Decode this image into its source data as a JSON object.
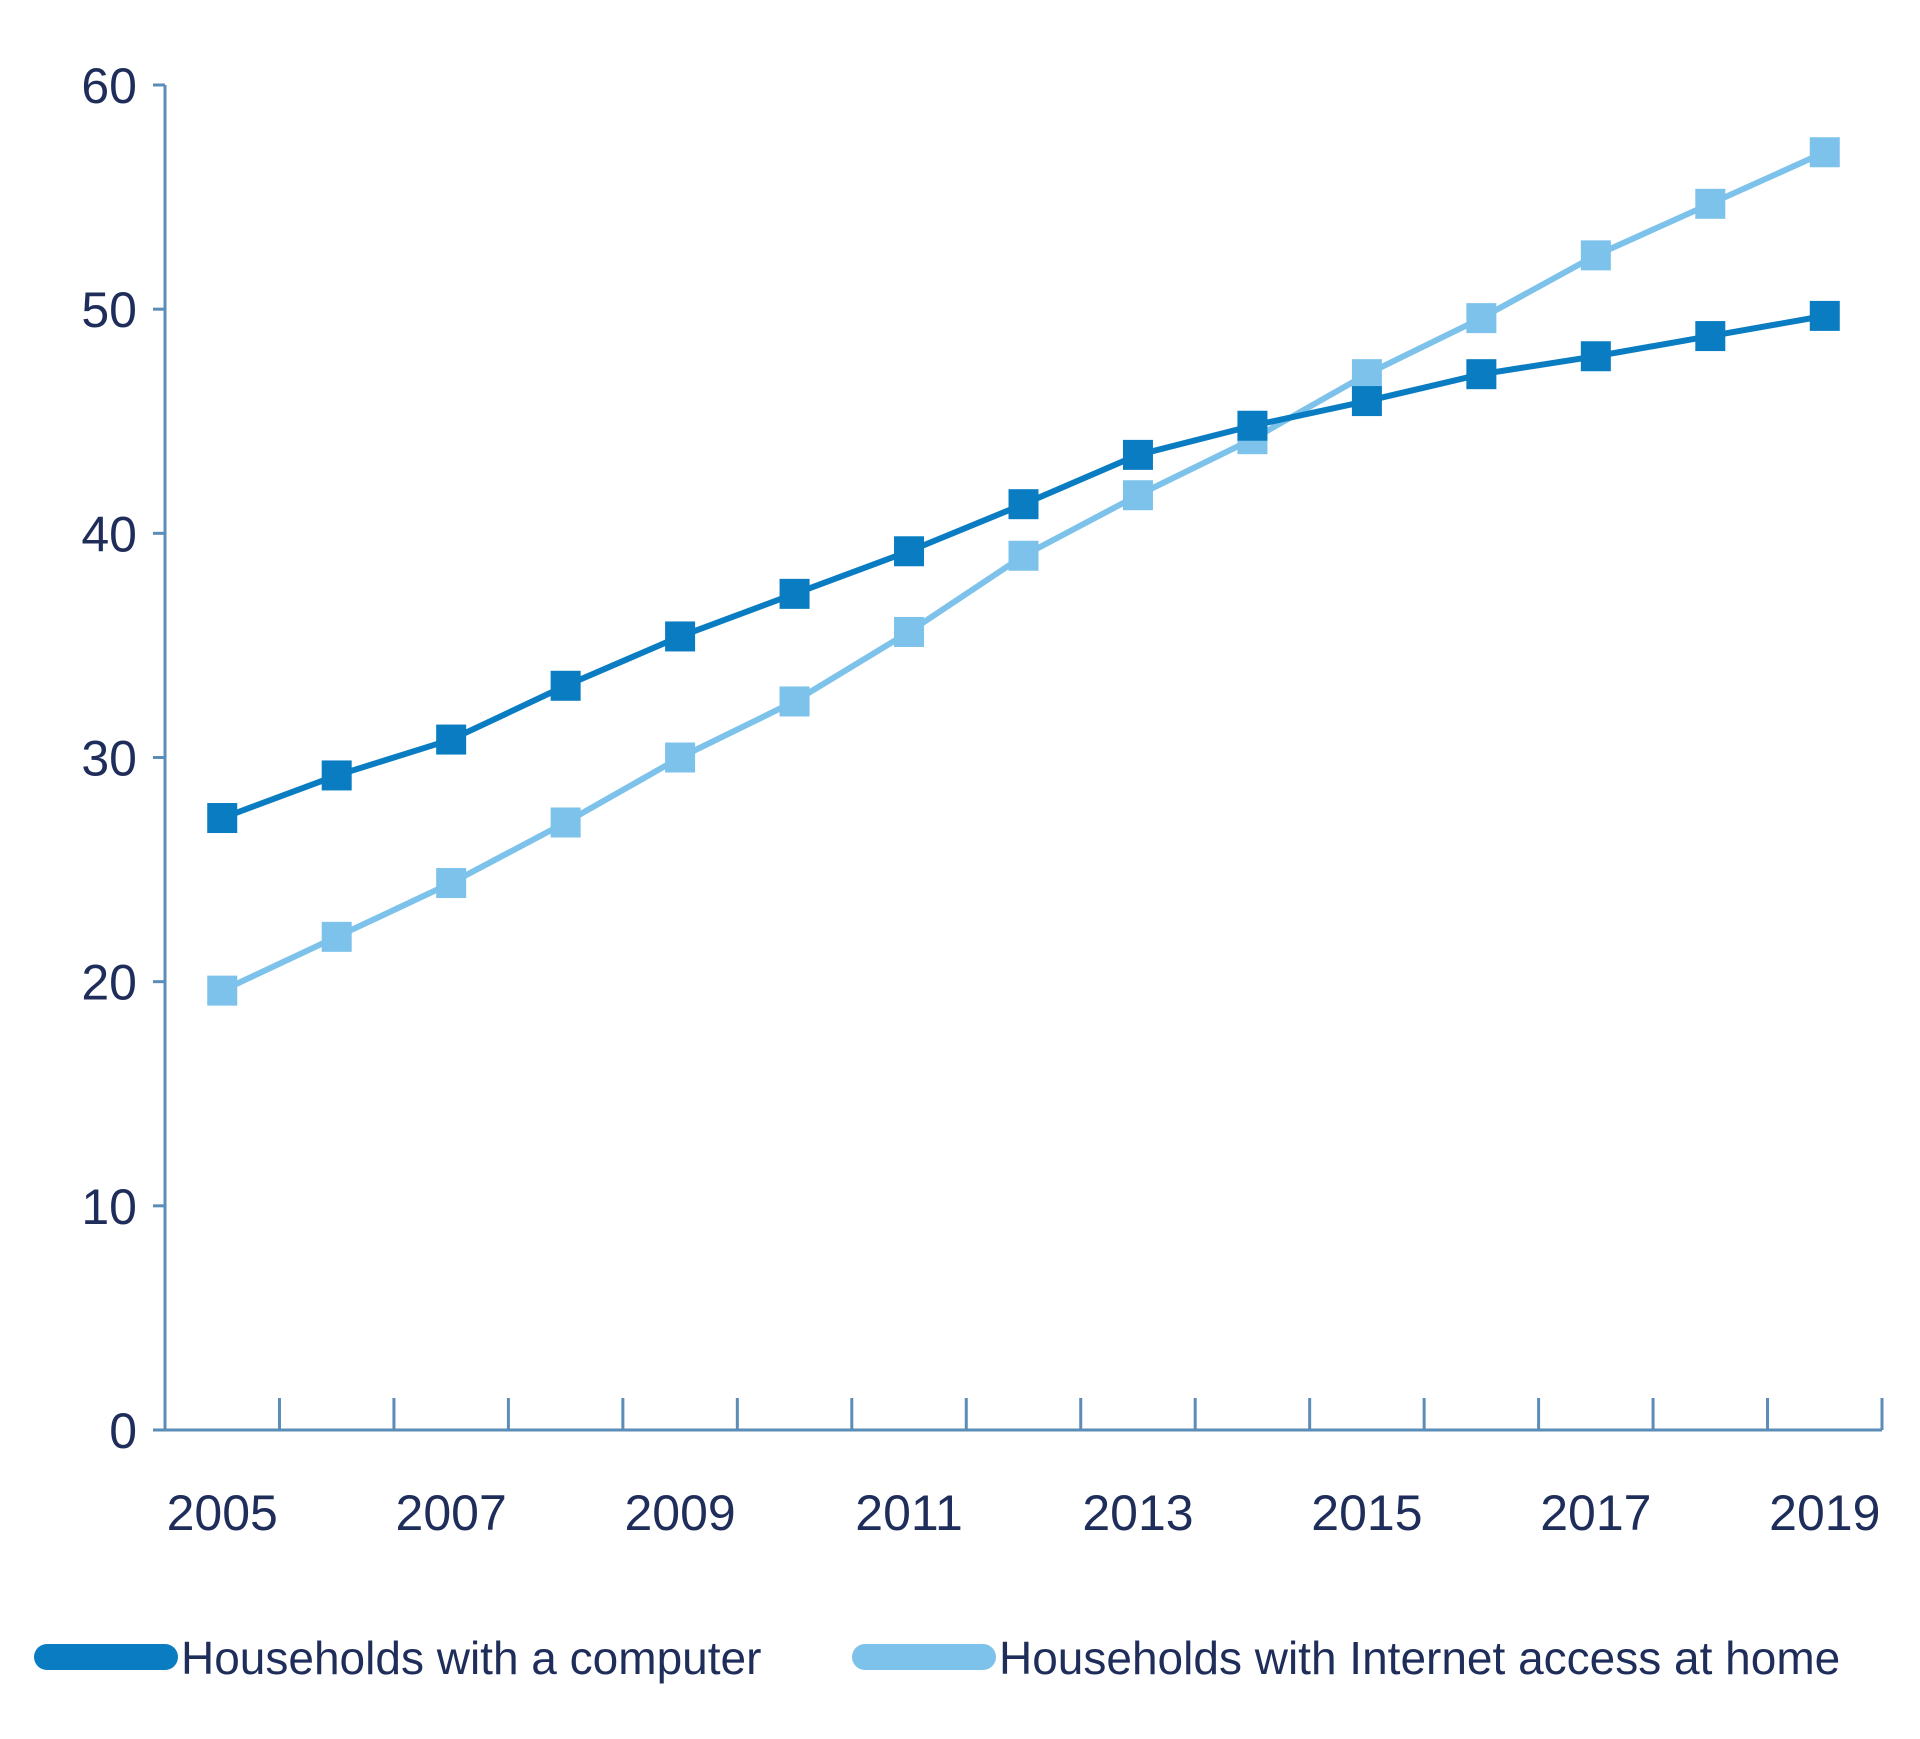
{
  "chart_data": {
    "type": "line",
    "x": [
      2005,
      2006,
      2007,
      2008,
      2009,
      2010,
      2011,
      2012,
      2013,
      2014,
      2015,
      2016,
      2017,
      2018,
      2019
    ],
    "x_tick_labels": [
      "2005",
      "2007",
      "2009",
      "2011",
      "2013",
      "2015",
      "2017",
      "2019"
    ],
    "y_tick_labels": [
      "0",
      "10",
      "20",
      "30",
      "40",
      "50",
      "60"
    ],
    "ylim": [
      0,
      60
    ],
    "xlim": [
      2004.5,
      2019.5
    ],
    "grid": false,
    "legend_position": "bottom",
    "series": [
      {
        "name": "Households with a computer",
        "color": "#0A7DC2",
        "values": [
          27.3,
          29.2,
          30.8,
          33.2,
          35.4,
          37.3,
          39.2,
          41.3,
          43.5,
          44.8,
          45.9,
          47.1,
          47.9,
          48.8,
          49.7
        ]
      },
      {
        "name": "Households with Internet access at home",
        "color": "#7DC2EB",
        "values": [
          19.6,
          22.0,
          24.4,
          27.1,
          30.0,
          32.5,
          35.6,
          39.0,
          41.7,
          44.2,
          47.1,
          49.6,
          52.4,
          54.7,
          57.0
        ]
      }
    ],
    "axis_color": "#5B8DB8",
    "text_color": "#1F2D5A"
  }
}
